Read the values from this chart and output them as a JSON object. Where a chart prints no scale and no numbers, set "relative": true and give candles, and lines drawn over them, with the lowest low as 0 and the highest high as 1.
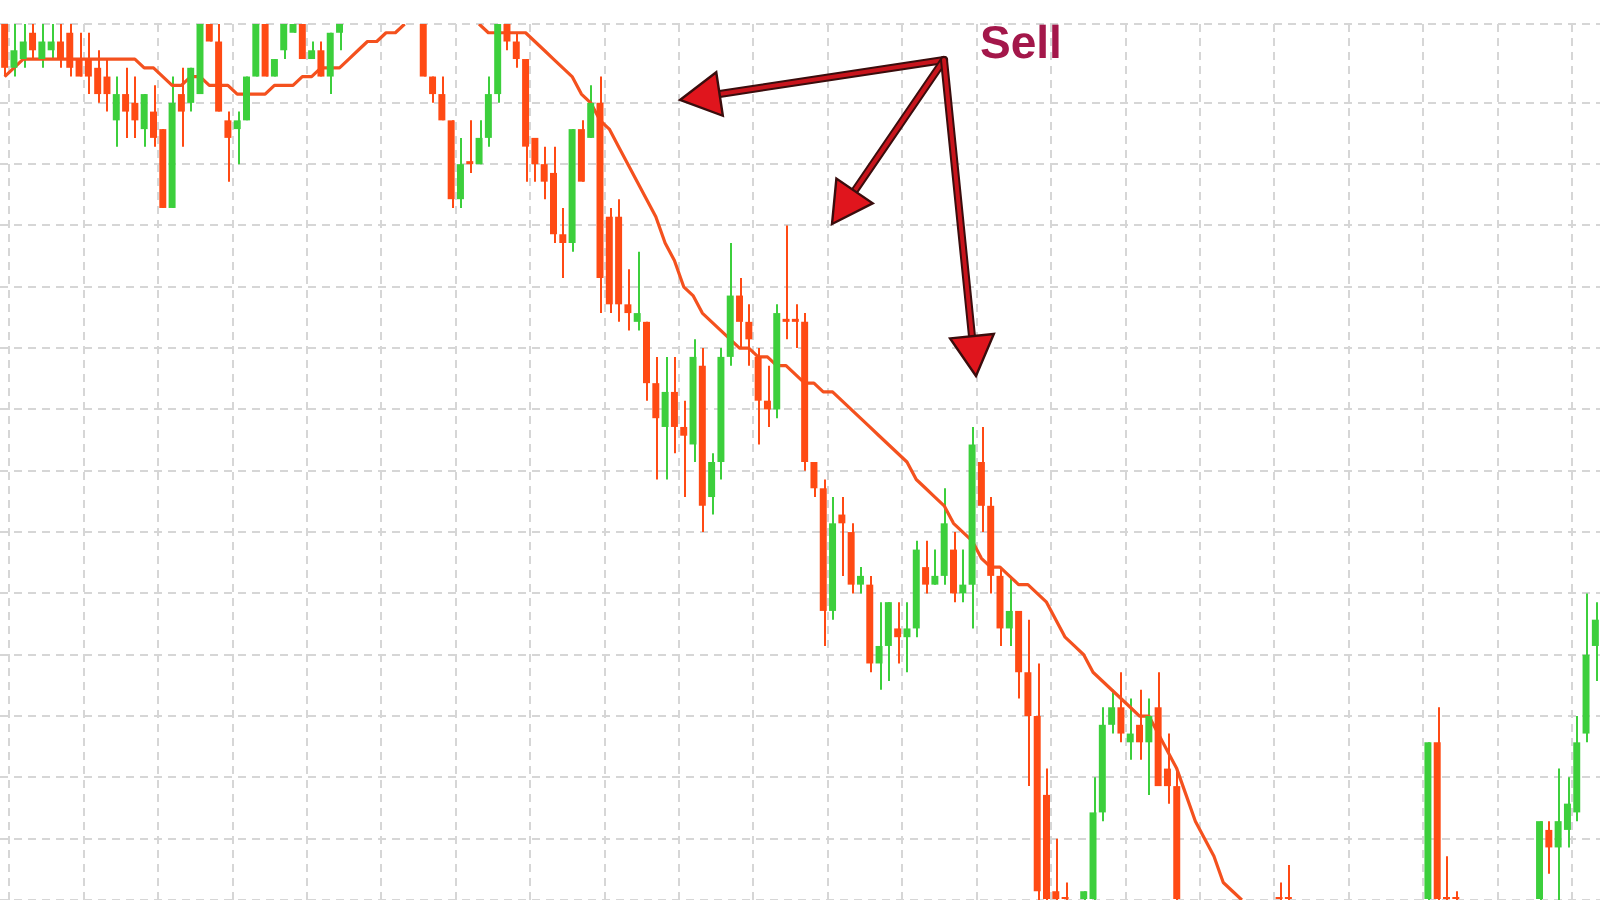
{
  "chart_data": {
    "type": "candlestick",
    "relative": true,
    "grid": true,
    "categories": [
      null,
      null,
      null,
      null,
      null,
      null,
      null,
      null,
      null,
      null,
      null,
      null,
      null,
      null,
      null,
      null,
      null,
      null,
      null,
      null,
      null,
      null,
      null,
      null,
      null,
      null,
      null,
      null,
      null,
      null,
      null,
      null,
      null,
      null,
      null,
      null,
      null,
      null,
      null,
      null,
      null,
      null,
      null,
      null,
      null,
      null,
      null,
      null,
      null,
      null,
      null,
      null,
      null,
      null,
      null,
      null,
      null,
      null,
      null,
      null,
      null,
      null,
      null,
      null,
      null,
      null,
      null,
      null,
      null,
      null,
      null,
      null,
      null,
      null,
      null,
      null,
      null,
      null,
      null,
      null,
      null,
      null,
      null,
      null,
      null,
      null,
      null,
      null,
      null,
      null,
      null,
      null,
      null,
      null,
      null,
      null,
      null,
      null,
      null,
      null,
      null,
      null,
      null,
      null,
      null,
      null,
      null,
      null,
      null,
      null,
      null,
      null,
      null,
      null,
      null,
      null,
      null,
      null,
      null,
      null,
      null,
      null,
      null,
      null,
      null,
      null,
      null,
      null,
      null,
      null,
      null,
      null,
      null,
      null,
      null,
      null,
      null,
      null,
      null,
      null,
      null,
      null,
      null,
      null,
      null,
      null,
      null,
      null,
      null,
      null,
      null,
      null,
      null,
      null,
      null,
      null,
      null,
      null,
      null,
      null,
      null,
      null,
      null,
      null,
      null,
      null,
      null,
      null,
      null,
      null,
      null,
      null
    ],
    "ohlc": [
      [
        1.0,
        1.0,
        0.94,
        0.95
      ],
      [
        0.95,
        1.0,
        0.94,
        0.97
      ],
      [
        0.96,
        1.0,
        0.95,
        0.98
      ],
      [
        0.99,
        1.0,
        0.96,
        0.97
      ],
      [
        0.96,
        1.0,
        0.95,
        0.98
      ],
      [
        0.97,
        1.0,
        0.96,
        0.98
      ],
      [
        0.98,
        1.0,
        0.95,
        0.96
      ],
      [
        0.99,
        1.0,
        0.94,
        0.95
      ],
      [
        0.96,
        0.99,
        0.94,
        0.94
      ],
      [
        0.96,
        0.99,
        0.92,
        0.94
      ],
      [
        0.95,
        0.97,
        0.91,
        0.92
      ],
      [
        0.94,
        0.96,
        0.9,
        0.92
      ],
      [
        0.89,
        0.94,
        0.86,
        0.92
      ],
      [
        0.92,
        0.95,
        0.87,
        0.9
      ],
      [
        0.91,
        0.94,
        0.87,
        0.89
      ],
      [
        0.88,
        0.92,
        0.86,
        0.92
      ],
      [
        0.9,
        0.93,
        0.86,
        0.87
      ],
      [
        0.88,
        0.88,
        0.79,
        0.79
      ],
      [
        0.79,
        0.94,
        0.79,
        0.91
      ],
      [
        0.92,
        0.95,
        0.86,
        0.9
      ],
      [
        0.91,
        0.95,
        0.9,
        0.95
      ],
      [
        0.92,
        1.0,
        0.92,
        1.0
      ],
      [
        1.0,
        1.0,
        0.98,
        0.98
      ],
      [
        0.98,
        1.0,
        0.9,
        0.9
      ],
      [
        0.89,
        0.9,
        0.82,
        0.87
      ],
      [
        0.88,
        0.9,
        0.84,
        0.89
      ],
      [
        0.89,
        0.94,
        0.89,
        0.94
      ],
      [
        0.94,
        1.0,
        0.94,
        1.0
      ],
      [
        1.0,
        1.0,
        0.94,
        0.94
      ],
      [
        0.94,
        0.96,
        0.94,
        0.96
      ],
      [
        0.97,
        1.0,
        0.96,
        1.0
      ],
      [
        0.99,
        1.0,
        0.99,
        1.0
      ],
      [
        1.0,
        1.0,
        0.96,
        0.96
      ],
      [
        0.96,
        0.98,
        0.96,
        0.97
      ],
      [
        0.97,
        0.98,
        0.94,
        0.94
      ],
      [
        0.94,
        0.99,
        0.92,
        0.99
      ],
      [
        0.99,
        1.0,
        0.97,
        1.0
      ],
      null,
      null,
      null,
      null,
      null,
      null,
      null,
      null,
      [
        1.0,
        1.0,
        0.94,
        0.94
      ],
      [
        0.94,
        0.94,
        0.91,
        0.92
      ],
      [
        0.92,
        0.94,
        0.89,
        0.89
      ],
      [
        0.89,
        0.89,
        0.79,
        0.8
      ],
      [
        0.8,
        0.87,
        0.79,
        0.84
      ],
      [
        0.84,
        0.89,
        0.83,
        0.84
      ],
      [
        0.84,
        0.89,
        0.84,
        0.87
      ],
      [
        0.87,
        0.94,
        0.86,
        0.92
      ],
      [
        0.92,
        1.0,
        0.91,
        1.0
      ],
      [
        1.0,
        1.0,
        0.97,
        0.98
      ],
      [
        0.98,
        0.99,
        0.95,
        0.96
      ],
      [
        0.96,
        0.96,
        0.82,
        0.86
      ],
      [
        0.87,
        0.87,
        0.82,
        0.84
      ],
      [
        0.84,
        0.86,
        0.8,
        0.82
      ],
      [
        0.83,
        0.86,
        0.75,
        0.76
      ],
      [
        0.76,
        0.79,
        0.71,
        0.75
      ],
      [
        0.75,
        0.88,
        0.74,
        0.88
      ],
      [
        0.88,
        0.89,
        0.82,
        0.82
      ],
      [
        0.87,
        0.93,
        0.87,
        0.91
      ],
      [
        0.91,
        0.94,
        0.67,
        0.71
      ],
      [
        0.78,
        0.79,
        0.67,
        0.68
      ],
      [
        0.78,
        0.8,
        0.66,
        0.68
      ],
      [
        0.68,
        0.72,
        0.65,
        0.67
      ],
      [
        0.66,
        0.74,
        0.65,
        0.67
      ],
      [
        0.66,
        0.66,
        0.57,
        0.59
      ],
      [
        0.59,
        0.62,
        0.48,
        0.55
      ],
      [
        0.54,
        0.62,
        0.48,
        0.58
      ],
      [
        0.58,
        0.62,
        0.51,
        0.54
      ],
      [
        0.54,
        0.57,
        0.46,
        0.53
      ],
      [
        0.52,
        0.64,
        0.5,
        0.62
      ],
      [
        0.61,
        0.63,
        0.42,
        0.45
      ],
      [
        0.46,
        0.51,
        0.44,
        0.5
      ],
      [
        0.5,
        0.63,
        0.48,
        0.62
      ],
      [
        0.62,
        0.75,
        0.61,
        0.69
      ],
      [
        0.69,
        0.71,
        0.63,
        0.66
      ],
      [
        0.66,
        0.68,
        0.61,
        0.64
      ],
      [
        0.62,
        0.63,
        0.52,
        0.57
      ],
      [
        0.57,
        0.61,
        0.54,
        0.56
      ],
      [
        0.56,
        0.68,
        0.55,
        0.67
      ],
      [
        0.66,
        0.77,
        0.64,
        0.66
      ],
      [
        0.66,
        0.68,
        0.63,
        0.66
      ],
      [
        0.66,
        0.67,
        0.49,
        0.5
      ],
      [
        0.5,
        0.5,
        0.46,
        0.47
      ],
      [
        0.47,
        0.48,
        0.29,
        0.33
      ],
      [
        0.33,
        0.46,
        0.32,
        0.43
      ],
      [
        0.44,
        0.46,
        0.37,
        0.43
      ],
      [
        0.42,
        0.43,
        0.35,
        0.36
      ],
      [
        0.36,
        0.38,
        0.35,
        0.37
      ],
      [
        0.36,
        0.37,
        0.26,
        0.27
      ],
      [
        0.27,
        0.34,
        0.24,
        0.29
      ],
      [
        0.29,
        0.34,
        0.25,
        0.34
      ],
      [
        0.31,
        0.34,
        0.27,
        0.3
      ],
      [
        0.3,
        0.34,
        0.26,
        0.31
      ],
      [
        0.31,
        0.41,
        0.3,
        0.4
      ],
      [
        0.38,
        0.41,
        0.35,
        0.36
      ],
      [
        0.36,
        0.4,
        0.36,
        0.37
      ],
      [
        0.37,
        0.47,
        0.36,
        0.43
      ],
      [
        0.4,
        0.42,
        0.34,
        0.35
      ],
      [
        0.35,
        0.4,
        0.34,
        0.36
      ],
      [
        0.36,
        0.54,
        0.31,
        0.52
      ],
      [
        0.5,
        0.54,
        0.42,
        0.45
      ],
      [
        0.45,
        0.46,
        0.35,
        0.37
      ],
      [
        0.37,
        0.38,
        0.29,
        0.31
      ],
      [
        0.31,
        0.37,
        0.29,
        0.33
      ],
      [
        0.33,
        0.33,
        0.23,
        0.26
      ],
      [
        0.26,
        0.32,
        0.13,
        0.21
      ],
      [
        0.21,
        0.27,
        0.0,
        0.01
      ],
      [
        0.12,
        0.15,
        0.0,
        0.0
      ],
      [
        0.01,
        0.07,
        0.0,
        0.0
      ],
      [
        0.0,
        0.02,
        0.0,
        0.0
      ],
      null,
      [
        0.0,
        0.01,
        0.0,
        0.01
      ],
      [
        0.0,
        0.14,
        0.0,
        0.1
      ],
      [
        0.1,
        0.22,
        0.09,
        0.2
      ],
      [
        0.2,
        0.24,
        0.19,
        0.22
      ],
      [
        0.22,
        0.26,
        0.18,
        0.19
      ],
      [
        0.18,
        0.23,
        0.16,
        0.19
      ],
      [
        0.2,
        0.24,
        0.16,
        0.18
      ],
      [
        0.18,
        0.23,
        0.12,
        0.21
      ],
      [
        0.22,
        0.26,
        0.13,
        0.13
      ],
      [
        0.15,
        0.19,
        0.11,
        0.13
      ],
      [
        0.13,
        0.15,
        0.0,
        0.0
      ],
      null,
      null,
      null,
      null,
      null,
      null,
      null,
      null,
      null,
      null,
      [
        0.0,
        0.02,
        0.0,
        0.0
      ],
      [
        0.0,
        0.04,
        0.0,
        0.0
      ],
      null,
      null,
      null,
      null,
      null,
      null,
      null,
      null,
      null,
      null,
      null,
      null,
      null,
      null,
      [
        0.0,
        0.18,
        0.0,
        0.18
      ],
      [
        0.18,
        0.22,
        0.0,
        0.0
      ],
      [
        0.0,
        0.05,
        0.0,
        0.0
      ],
      [
        0.0,
        0.01,
        0.0,
        0.0
      ],
      null,
      null,
      null,
      null,
      null,
      null,
      null,
      null,
      [
        0.0,
        0.09,
        0.0,
        0.09
      ],
      [
        0.08,
        0.09,
        0.03,
        0.06
      ],
      [
        0.06,
        0.15,
        0.0,
        0.09
      ],
      [
        0.08,
        0.14,
        0.06,
        0.11
      ],
      [
        0.1,
        0.21,
        0.09,
        0.18
      ],
      [
        0.19,
        0.35,
        0.18,
        0.28
      ],
      [
        0.29,
        0.34,
        0.25,
        0.32
      ]
    ],
    "colors": [
      "#ff4a14",
      "#3ccf3c",
      "#3ccf3c",
      "#ff4a14",
      "#3ccf3c",
      "#3ccf3c",
      "#ff4a14",
      "#ff4a14",
      "#ff4a14",
      "#ff4a14",
      "#ff4a14",
      "#ff4a14",
      "#3ccf3c",
      "#ff4a14",
      "#ff4a14",
      "#3ccf3c",
      "#ff4a14",
      "#ff4a14",
      "#3ccf3c",
      "#ff4a14",
      "#3ccf3c",
      "#3ccf3c",
      "#ff4a14",
      "#ff4a14",
      "#ff4a14",
      "#3ccf3c",
      "#3ccf3c",
      "#3ccf3c",
      "#ff4a14",
      "#3ccf3c",
      "#3ccf3c",
      "#3ccf3c",
      "#ff4a14",
      "#3ccf3c",
      "#ff4a14",
      "#3ccf3c",
      "#3ccf3c",
      null,
      null,
      null,
      null,
      null,
      null,
      null,
      null,
      "#ff4a14",
      "#ff4a14",
      "#ff4a14",
      "#ff4a14",
      "#3ccf3c",
      "#ff4a14",
      "#3ccf3c",
      "#3ccf3c",
      "#3ccf3c",
      "#ff4a14",
      "#ff4a14",
      "#ff4a14",
      "#ff4a14",
      "#ff4a14",
      "#ff4a14",
      "#ff4a14",
      "#3ccf3c",
      "#ff4a14",
      "#3ccf3c",
      "#ff4a14",
      "#ff4a14",
      "#ff4a14",
      "#ff4a14",
      "#3ccf3c",
      "#ff4a14",
      "#ff4a14",
      "#3ccf3c",
      "#ff4a14",
      "#ff4a14",
      "#3ccf3c",
      "#ff4a14",
      "#3ccf3c",
      "#3ccf3c",
      "#3ccf3c",
      "#ff4a14",
      "#ff4a14",
      "#ff4a14",
      "#ff4a14",
      "#3ccf3c",
      "#ff4a14",
      "#ff4a14",
      "#ff4a14",
      "#ff4a14",
      "#ff4a14",
      "#3ccf3c",
      "#ff4a14",
      "#ff4a14",
      "#3ccf3c",
      "#ff4a14",
      "#3ccf3c",
      "#3ccf3c",
      "#ff4a14",
      "#3ccf3c",
      "#3ccf3c",
      "#ff4a14",
      "#3ccf3c",
      "#3ccf3c",
      "#ff4a14",
      "#3ccf3c",
      "#3ccf3c",
      "#ff4a14",
      "#ff4a14",
      "#ff4a14",
      "#3ccf3c",
      "#ff4a14",
      "#ff4a14",
      "#ff4a14",
      "#ff4a14",
      "#ff4a14",
      "#ff4a14",
      null,
      "#3ccf3c",
      "#3ccf3c",
      "#3ccf3c",
      "#3ccf3c",
      "#ff4a14",
      "#3ccf3c",
      "#ff4a14",
      "#3ccf3c",
      "#ff4a14",
      "#ff4a14",
      "#ff4a14",
      null,
      null,
      null,
      null,
      null,
      null,
      null,
      null,
      null,
      null,
      "#ff4a14",
      "#ff4a14",
      null,
      null,
      null,
      null,
      null,
      null,
      null,
      null,
      null,
      null,
      null,
      null,
      null,
      null,
      "#3ccf3c",
      "#ff4a14",
      "#ff4a14",
      "#ff4a14",
      null,
      null,
      null,
      null,
      null,
      null,
      null,
      null,
      "#3ccf3c",
      "#ff4a14",
      "#3ccf3c",
      "#3ccf3c",
      "#3ccf3c",
      "#3ccf3c",
      "#3ccf3c"
    ],
    "series": [
      {
        "type": "line",
        "color": "#f4511e",
        "values": [
          0.94,
          0.95,
          0.96,
          0.96,
          0.96,
          0.96,
          0.96,
          0.96,
          0.96,
          0.96,
          0.96,
          0.96,
          0.96,
          0.96,
          0.96,
          0.95,
          0.95,
          0.94,
          0.93,
          0.93,
          0.94,
          0.94,
          0.93,
          0.93,
          0.93,
          0.92,
          0.92,
          0.92,
          0.92,
          0.93,
          0.93,
          0.93,
          0.94,
          0.94,
          0.95,
          0.95,
          0.95,
          0.96,
          0.97,
          0.98,
          0.98,
          0.99,
          0.99,
          1.0,
          null,
          null,
          null,
          null,
          null,
          null,
          null,
          1.0,
          0.99,
          0.99,
          0.99,
          0.99,
          0.99,
          0.98,
          0.97,
          0.96,
          0.95,
          0.94,
          0.92,
          0.91,
          0.89,
          0.88,
          0.86,
          0.84,
          0.82,
          0.8,
          0.78,
          0.75,
          0.73,
          0.7,
          0.69,
          0.67,
          0.66,
          0.65,
          0.64,
          0.63,
          0.63,
          0.62,
          0.62,
          0.61,
          0.61,
          0.6,
          0.59,
          0.59,
          0.58,
          0.58,
          0.57,
          0.56,
          0.55,
          0.54,
          0.53,
          0.52,
          0.51,
          0.5,
          0.48,
          0.47,
          0.46,
          0.45,
          0.43,
          0.42,
          0.41,
          0.39,
          0.38,
          0.38,
          0.37,
          0.36,
          0.36,
          0.35,
          0.34,
          0.32,
          0.3,
          0.29,
          0.28,
          0.26,
          0.25,
          0.24,
          0.23,
          0.22,
          0.21,
          0.21,
          0.19,
          0.17,
          0.15,
          0.12,
          0.09,
          0.07,
          0.05,
          0.02,
          0.01,
          0.0,
          null,
          null,
          null,
          null,
          null,
          null,
          null,
          null,
          null,
          null,
          null,
          null,
          null,
          null,
          null,
          null,
          null,
          null,
          null,
          null,
          null,
          null,
          null,
          null,
          null,
          null,
          null,
          null,
          null,
          null,
          null,
          null,
          null,
          null,
          null,
          null,
          null,
          null
        ]
      }
    ],
    "annotations": [
      "Sell"
    ]
  }
}
